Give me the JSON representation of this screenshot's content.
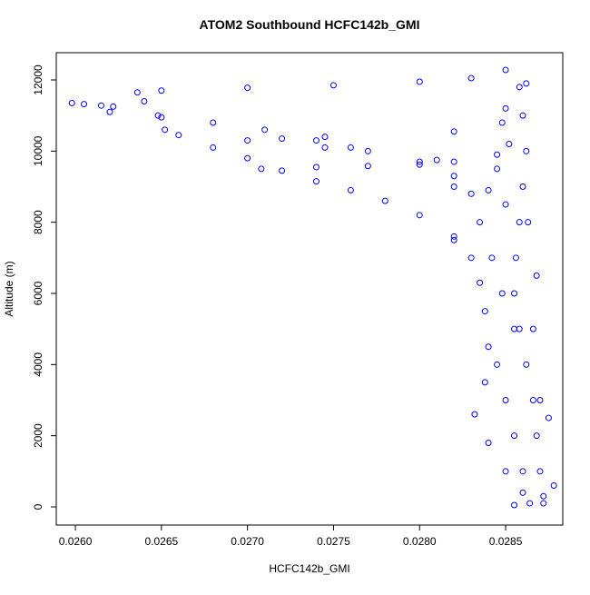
{
  "chart_data": {
    "type": "scatter",
    "title": "ATOM2 Southbound HCFC142b_GMI",
    "x_label": "HCFC142b_GMI",
    "y_label": "Altitude (m)",
    "color": "#0000ff",
    "xlim": [
      0.025889,
      0.028832
    ],
    "ylim": [
      -511,
      12766
    ],
    "xticks": [
      {
        "value": 0.026,
        "label": "0.0260"
      },
      {
        "value": 0.0265,
        "label": "0.0265"
      },
      {
        "value": 0.027,
        "label": "0.0270"
      },
      {
        "value": 0.0275,
        "label": "0.0275"
      },
      {
        "value": 0.028,
        "label": "0.0280"
      },
      {
        "value": 0.0285,
        "label": "0.0285"
      }
    ],
    "yticks": [
      0,
      2000,
      4000,
      6000,
      8000,
      10000,
      12000
    ],
    "x": [
      0.02636,
      0.0265,
      0.027,
      0.0275,
      0.028,
      0.0283,
      0.0285,
      0.02858,
      0.0286,
      0.02862,
      0.0286,
      0.02858,
      0.02856,
      0.02855,
      0.02858,
      0.02862,
      0.02866,
      0.02868,
      0.0287,
      0.02872,
      0.02872,
      0.02598,
      0.02605,
      0.02615,
      0.02622,
      0.0264,
      0.02648,
      0.02652,
      0.0266,
      0.0268,
      0.027,
      0.0272,
      0.0274,
      0.0276,
      0.0278,
      0.028,
      0.0282,
      0.0283,
      0.02835,
      0.02838,
      0.0284,
      0.02838,
      0.02832,
      0.0284,
      0.0285,
      0.0286,
      0.02864,
      0.0262,
      0.0265,
      0.0268,
      0.0271,
      0.0274,
      0.0277,
      0.028,
      0.0282,
      0.0283,
      0.02835,
      0.027,
      0.0272,
      0.02745,
      0.02745,
      0.0276,
      0.02708,
      0.0274,
      0.0277,
      0.028,
      0.0282,
      0.02845,
      0.0282,
      0.0281,
      0.0282,
      0.0284,
      0.0282,
      0.02848,
      0.02852,
      0.02845,
      0.0285,
      0.02842,
      0.02848,
      0.02855,
      0.02845,
      0.0285,
      0.02855,
      0.0286,
      0.02855,
      0.02866,
      0.0287,
      0.02863,
      0.02868,
      0.02875,
      0.02878,
      0.0285,
      0.02862
    ],
    "values": [
      11650,
      11700,
      11780,
      11850,
      11950,
      12050,
      12280,
      11800,
      11000,
      10000,
      9000,
      8000,
      7000,
      6000,
      5000,
      4000,
      3000,
      2000,
      1000,
      300,
      100,
      11350,
      11320,
      11280,
      11250,
      11400,
      11000,
      10600,
      10450,
      10100,
      9800,
      9450,
      9150,
      8900,
      8600,
      8200,
      7600,
      7000,
      6300,
      5500,
      4500,
      3500,
      2600,
      1800,
      1000,
      400,
      100,
      11100,
      10950,
      10800,
      10600,
      10300,
      10000,
      9700,
      9300,
      8800,
      8000,
      10300,
      10350,
      10400,
      10100,
      10100,
      9500,
      9550,
      9580,
      9620,
      9700,
      9900,
      10550,
      9750,
      9000,
      8900,
      7500,
      10800,
      10200,
      9500,
      8500,
      7000,
      6000,
      5000,
      4000,
      3000,
      2000,
      1000,
      50,
      5000,
      3000,
      8000,
      6500,
      2500,
      600,
      11200,
      11900
    ]
  }
}
